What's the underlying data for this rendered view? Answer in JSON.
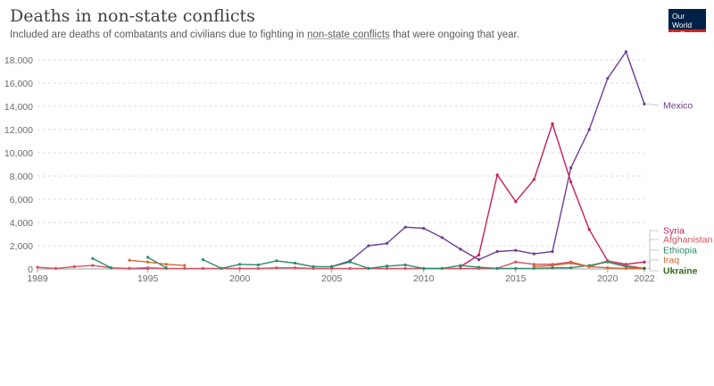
{
  "header": {
    "title": "Deaths in non-state conflicts",
    "subtitle_before": "Included are deaths of combatants and civilians due to fighting in ",
    "subtitle_link": "non-state conflicts",
    "subtitle_after": " that were ongoing that year."
  },
  "logo": {
    "line1": "Our World",
    "line2": "in Data",
    "bg_color": "#002147",
    "accent_color": "#ce261e"
  },
  "chart_data": {
    "type": "line",
    "title": "Deaths in non-state conflicts",
    "x": [
      1989,
      1990,
      1991,
      1992,
      1993,
      1994,
      1995,
      1996,
      1997,
      1998,
      1999,
      2000,
      2001,
      2002,
      2003,
      2004,
      2005,
      2006,
      2007,
      2008,
      2009,
      2010,
      2011,
      2012,
      2013,
      2014,
      2015,
      2016,
      2017,
      2018,
      2019,
      2020,
      2021,
      2022
    ],
    "xlim": [
      1989,
      2022
    ],
    "x_ticks": [
      1989,
      1995,
      2000,
      2005,
      2010,
      2015,
      2020,
      2022
    ],
    "ylim": [
      0,
      18500
    ],
    "y_ticks": [
      0,
      2000,
      4000,
      6000,
      8000,
      10000,
      12000,
      14000,
      16000,
      18000
    ],
    "y_tick_labels": [
      "0",
      "2,000",
      "4,000",
      "6,000",
      "8,000",
      "10,000",
      "12,000",
      "14,000",
      "16,000",
      "18,000"
    ],
    "grid": "horizontal dashed",
    "legend": "line-end labels at right",
    "series": [
      {
        "name": "Mexico",
        "color": "#6d3e91",
        "values": [
          null,
          null,
          null,
          null,
          null,
          50,
          50,
          null,
          null,
          null,
          null,
          null,
          null,
          null,
          null,
          null,
          200,
          700,
          2000,
          2200,
          3600,
          3500,
          2700,
          1700,
          800,
          1500,
          1600,
          1300,
          1500,
          8700,
          12000,
          16400,
          18700,
          14200
        ]
      },
      {
        "name": "Syria",
        "color": "#c71e5b",
        "values": [
          null,
          null,
          null,
          null,
          null,
          null,
          null,
          null,
          null,
          null,
          null,
          null,
          null,
          null,
          null,
          null,
          null,
          null,
          null,
          null,
          null,
          null,
          null,
          200,
          1200,
          8100,
          5800,
          7700,
          12500,
          7500,
          3400,
          700,
          400,
          600
        ]
      },
      {
        "name": "Afghanistan",
        "color": "#d8505f",
        "values": [
          150,
          50,
          200,
          300,
          100,
          50,
          100,
          50,
          50,
          50,
          50,
          50,
          50,
          100,
          100,
          50,
          50,
          50,
          50,
          50,
          50,
          50,
          50,
          50,
          50,
          50,
          600,
          400,
          400,
          600,
          200,
          700,
          300,
          50
        ]
      },
      {
        "name": "Ethiopia",
        "color": "#2a8c6b",
        "values": [
          null,
          null,
          null,
          900,
          100,
          null,
          1000,
          100,
          null,
          800,
          50,
          400,
          350,
          700,
          500,
          200,
          200,
          600,
          50,
          250,
          350,
          50,
          50,
          300,
          150,
          50,
          50,
          50,
          100,
          100,
          300,
          600,
          200,
          50
        ]
      },
      {
        "name": "Iraq",
        "color": "#d26a2f",
        "values": [
          null,
          null,
          null,
          null,
          null,
          750,
          600,
          400,
          300,
          null,
          null,
          null,
          null,
          null,
          null,
          null,
          null,
          null,
          null,
          null,
          null,
          null,
          null,
          null,
          null,
          null,
          null,
          200,
          300,
          500,
          200,
          100,
          50,
          50
        ]
      },
      {
        "name": "Ukraine",
        "color": "#2f6b1a",
        "values": [
          null,
          null,
          null,
          null,
          null,
          null,
          null,
          null,
          null,
          null,
          null,
          null,
          null,
          null,
          null,
          null,
          null,
          null,
          null,
          null,
          null,
          null,
          null,
          null,
          null,
          null,
          null,
          null,
          null,
          null,
          null,
          null,
          null,
          50
        ]
      }
    ]
  }
}
